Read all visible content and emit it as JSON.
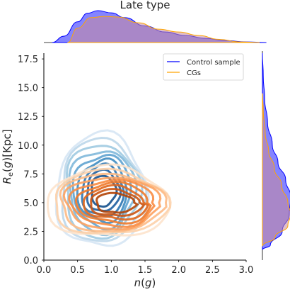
{
  "chart_data": {
    "type": "kde-joint",
    "title": "Late type",
    "xlabel": "n(g)",
    "ylabel": "R_e(g)[Kpc]",
    "xlim": [
      0.0,
      3.0
    ],
    "ylim": [
      0.0,
      18.0
    ],
    "xticks": [
      "0.0",
      "0.5",
      "1.0",
      "1.5",
      "2.0",
      "2.5",
      "3.0"
    ],
    "yticks": [
      "0.0",
      "2.5",
      "5.0",
      "7.5",
      "10.0",
      "12.5",
      "15.0",
      "17.5"
    ],
    "grid": false,
    "legend_position": "top-right",
    "series": [
      {
        "name": "Control sample",
        "line_color": "#0000ff",
        "fill_color": "#6f6fff",
        "contour_colormap": "Blues",
        "contour_center": [
          0.85,
          6.0
        ],
        "contour_spread": [
          0.28,
          2.6
        ],
        "x_marginal": [
          [
            0.12,
            0.0
          ],
          [
            0.3,
            0.2
          ],
          [
            0.5,
            0.65
          ],
          [
            0.65,
            0.92
          ],
          [
            0.8,
            1.0
          ],
          [
            1.0,
            0.93
          ],
          [
            1.2,
            0.78
          ],
          [
            1.5,
            0.52
          ],
          [
            1.8,
            0.33
          ],
          [
            2.1,
            0.22
          ],
          [
            2.4,
            0.13
          ],
          [
            2.7,
            0.06
          ],
          [
            3.0,
            0.02
          ],
          [
            3.3,
            0.0
          ]
        ],
        "y_marginal": [
          [
            0.9,
            0.0
          ],
          [
            1.3,
            0.28
          ],
          [
            2.5,
            0.7
          ],
          [
            4.0,
            0.95
          ],
          [
            5.5,
            1.0
          ],
          [
            7.0,
            0.82
          ],
          [
            8.5,
            0.55
          ],
          [
            10.0,
            0.35
          ],
          [
            12.0,
            0.18
          ],
          [
            14.0,
            0.08
          ],
          [
            16.0,
            0.03
          ],
          [
            18.0,
            0.0
          ]
        ]
      },
      {
        "name": "CGs",
        "line_color": "#ffa500",
        "fill_color": "#c98a9b",
        "contour_colormap": "Oranges",
        "contour_center": [
          0.95,
          5.0
        ],
        "contour_spread": [
          0.38,
          1.6
        ],
        "x_marginal": [
          [
            0.35,
            0.0
          ],
          [
            0.5,
            0.45
          ],
          [
            0.7,
            0.78
          ],
          [
            0.9,
            0.82
          ],
          [
            1.1,
            0.8
          ],
          [
            1.4,
            0.62
          ],
          [
            1.7,
            0.42
          ],
          [
            2.0,
            0.33
          ],
          [
            2.3,
            0.22
          ],
          [
            2.6,
            0.1
          ],
          [
            2.9,
            0.02
          ],
          [
            3.2,
            0.0
          ]
        ],
        "y_marginal": [
          [
            1.2,
            0.0
          ],
          [
            2.0,
            0.45
          ],
          [
            3.0,
            0.9
          ],
          [
            4.0,
            1.0
          ],
          [
            5.0,
            0.9
          ],
          [
            6.5,
            0.68
          ],
          [
            8.0,
            0.42
          ],
          [
            9.5,
            0.22
          ],
          [
            11.0,
            0.1
          ],
          [
            13.0,
            0.03
          ],
          [
            14.5,
            0.0
          ]
        ]
      }
    ]
  }
}
